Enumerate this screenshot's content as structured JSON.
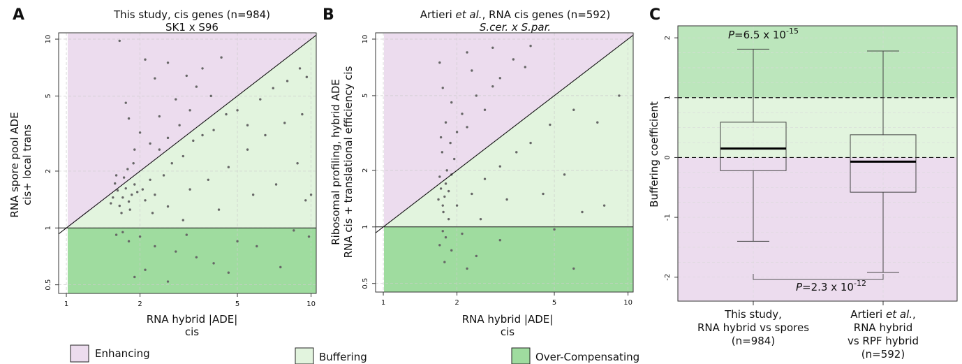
{
  "colors": {
    "enhancing": "#ecdcee",
    "buffering": "#e2f4de",
    "over_compensating": "#9fdc9f",
    "point": "#666666"
  },
  "panels": {
    "a": {
      "letter": "A",
      "title_line1": "This study, cis genes (n=984)",
      "title_line2": "SK1 x S96",
      "xlabel_line1": "RNA hybrid |ADE|",
      "xlabel_line2": "cis",
      "ylabel_line1": "RNA spore pool ADE",
      "ylabel_line2": "cis+ local trans"
    },
    "b": {
      "letter": "B",
      "title_prefix": "Artieri ",
      "title_etal": "et al.",
      "title_suffix": ", RNA cis genes (n=592)",
      "title_line2": "S.cer. x S.par.",
      "xlabel_line1": "RNA hybrid |ADE|",
      "xlabel_line2": "cis",
      "ylabel_line1": "Ribosomal profiling, hybrid ADE",
      "ylabel_line2": "RNA cis + translational efficiency cis"
    },
    "c": {
      "letter": "C",
      "ylabel": "Buffering coefficient",
      "p1_prefix": "P",
      "p1_value": "=6.5 x 10",
      "p1_exp": "-15",
      "p2_prefix": "P",
      "p2_value": "=2.3 x 10",
      "p2_exp": "-12",
      "cat1_line1": "This study,",
      "cat1_line2": "RNA hybrid vs spores",
      "cat1_line3": "(n=984)",
      "cat2_line1_prefix": "Artieri ",
      "cat2_line1_etal": "et al.",
      "cat2_line1_suffix": ",",
      "cat2_line2": "RNA hybrid",
      "cat2_line3": "vs RPF hybrid",
      "cat2_line4": "(n=592)"
    }
  },
  "legend": [
    {
      "label": "Enhancing"
    },
    {
      "label": "Buffering"
    },
    {
      "label": "Over-Compensating"
    }
  ],
  "chart_data": [
    {
      "type": "scatter",
      "panel": "A",
      "title": "This study, cis genes (n=984)",
      "subtitle": "SK1 x S96",
      "xlabel": "RNA hybrid |ADE| cis",
      "ylabel": "RNA spore pool ADE cis+ local trans",
      "x_scale": "log",
      "y_scale": "log",
      "xlim": [
        0.93,
        10.5
      ],
      "ylim": [
        0.45,
        10.8
      ],
      "x_ticks": [
        1,
        2,
        5,
        10
      ],
      "y_ticks": [
        0.5,
        1,
        2,
        5,
        10
      ],
      "grid": true,
      "reference_lines": [
        "y = x",
        "y = 1"
      ],
      "regions": [
        "Enhancing (y > x)",
        "Buffering (1 < y < x)",
        "Over-Compensating (y < 1)"
      ],
      "n_points": 984,
      "points": [
        [
          1.62,
          1.58
        ],
        [
          1.7,
          1.45
        ],
        [
          1.75,
          1.62
        ],
        [
          1.8,
          1.38
        ],
        [
          1.58,
          1.72
        ],
        [
          1.65,
          1.31
        ],
        [
          1.9,
          1.7
        ],
        [
          1.85,
          1.5
        ],
        [
          1.55,
          1.45
        ],
        [
          1.72,
          1.85
        ],
        [
          1.95,
          1.55
        ],
        [
          2.05,
          1.6
        ],
        [
          1.68,
          1.2
        ],
        [
          1.6,
          1.9
        ],
        [
          1.78,
          2.05
        ],
        [
          2.1,
          1.4
        ],
        [
          1.82,
          1.25
        ],
        [
          1.52,
          1.35
        ],
        [
          2.2,
          1.8
        ],
        [
          1.88,
          2.2
        ],
        [
          2.3,
          1.5
        ],
        [
          2.5,
          1.9
        ],
        [
          2.7,
          2.2
        ],
        [
          3.0,
          2.4
        ],
        [
          3.3,
          2.9
        ],
        [
          3.6,
          3.1
        ],
        [
          4.0,
          3.3
        ],
        [
          4.5,
          4.0
        ],
        [
          5.0,
          4.2
        ],
        [
          5.5,
          3.5
        ],
        [
          6.2,
          4.8
        ],
        [
          7.0,
          5.5
        ],
        [
          8.0,
          6.0
        ],
        [
          9.0,
          7.0
        ],
        [
          9.6,
          6.3
        ],
        [
          2.4,
          2.6
        ],
        [
          2.6,
          3.0
        ],
        [
          2.9,
          3.5
        ],
        [
          3.2,
          4.2
        ],
        [
          2.2,
          2.8
        ],
        [
          2.0,
          3.2
        ],
        [
          1.9,
          2.6
        ],
        [
          2.8,
          4.8
        ],
        [
          3.4,
          5.6
        ],
        [
          1.8,
          3.8
        ],
        [
          2.3,
          6.2
        ],
        [
          2.6,
          7.5
        ],
        [
          3.6,
          7.0
        ],
        [
          4.3,
          8.0
        ],
        [
          1.65,
          9.8
        ],
        [
          2.1,
          7.8
        ],
        [
          3.1,
          6.4
        ],
        [
          1.75,
          4.6
        ],
        [
          2.4,
          3.9
        ],
        [
          3.9,
          5.0
        ],
        [
          2.25,
          1.2
        ],
        [
          2.6,
          1.3
        ],
        [
          3.2,
          1.6
        ],
        [
          3.8,
          1.8
        ],
        [
          4.6,
          2.1
        ],
        [
          5.5,
          2.6
        ],
        [
          6.5,
          3.1
        ],
        [
          7.8,
          3.6
        ],
        [
          9.2,
          4.0
        ],
        [
          3.0,
          1.1
        ],
        [
          4.2,
          1.25
        ],
        [
          5.8,
          1.5
        ],
        [
          7.2,
          1.7
        ],
        [
          8.8,
          2.2
        ],
        [
          9.5,
          1.4
        ],
        [
          10.0,
          1.5
        ],
        [
          1.7,
          0.95
        ],
        [
          1.8,
          0.85
        ],
        [
          2.0,
          0.9
        ],
        [
          2.3,
          0.8
        ],
        [
          1.6,
          0.92
        ],
        [
          2.8,
          0.75
        ],
        [
          3.4,
          0.7
        ],
        [
          4.0,
          0.65
        ],
        [
          5.0,
          0.85
        ],
        [
          6.0,
          0.8
        ],
        [
          7.5,
          0.62
        ],
        [
          2.1,
          0.6
        ],
        [
          1.9,
          0.55
        ],
        [
          2.6,
          0.52
        ],
        [
          4.6,
          0.58
        ],
        [
          3.1,
          0.92
        ],
        [
          8.5,
          0.97
        ],
        [
          9.8,
          0.9
        ]
      ]
    },
    {
      "type": "scatter",
      "panel": "B",
      "title": "Artieri et al., RNA cis genes (n=592)",
      "subtitle": "S.cer. x S.par.",
      "xlabel": "RNA hybrid |ADE| cis",
      "ylabel": "Ribosomal profiling, hybrid ADE RNA cis + translational efficiency cis",
      "x_scale": "log",
      "y_scale": "log",
      "xlim": [
        0.93,
        10.5
      ],
      "ylim": [
        0.45,
        10.8
      ],
      "x_ticks": [
        1,
        2,
        5,
        10
      ],
      "y_ticks": [
        0.5,
        1,
        2,
        5,
        10
      ],
      "grid": true,
      "reference_lines": [
        "y = x",
        "y = 1"
      ],
      "regions": [
        "Enhancing (y > x)",
        "Buffering (1 < y < x)",
        "Over-Compensating (y < 1)"
      ],
      "n_points": 592,
      "points": [
        [
          1.72,
          1.6
        ],
        [
          1.78,
          1.45
        ],
        [
          1.8,
          1.7
        ],
        [
          1.75,
          1.3
        ],
        [
          1.7,
          1.85
        ],
        [
          1.85,
          1.55
        ],
        [
          1.82,
          2.0
        ],
        [
          1.68,
          1.4
        ],
        [
          1.9,
          1.9
        ],
        [
          1.76,
          1.2
        ],
        [
          1.95,
          2.3
        ],
        [
          1.74,
          2.5
        ],
        [
          1.88,
          2.8
        ],
        [
          2.0,
          3.2
        ],
        [
          1.8,
          3.6
        ],
        [
          2.1,
          4.0
        ],
        [
          2.2,
          3.4
        ],
        [
          1.9,
          4.6
        ],
        [
          2.4,
          5.0
        ],
        [
          2.6,
          4.2
        ],
        [
          2.8,
          5.6
        ],
        [
          3.0,
          6.2
        ],
        [
          2.3,
          6.8
        ],
        [
          1.7,
          7.5
        ],
        [
          3.4,
          7.8
        ],
        [
          3.8,
          7.1
        ],
        [
          2.2,
          8.5
        ],
        [
          2.8,
          9.0
        ],
        [
          4.0,
          9.2
        ],
        [
          1.75,
          5.5
        ],
        [
          1.72,
          3.0
        ],
        [
          1.85,
          1.1
        ],
        [
          2.0,
          1.3
        ],
        [
          2.3,
          1.5
        ],
        [
          2.6,
          1.8
        ],
        [
          3.0,
          2.1
        ],
        [
          3.5,
          2.5
        ],
        [
          4.0,
          2.8
        ],
        [
          4.8,
          3.5
        ],
        [
          6.0,
          4.2
        ],
        [
          7.5,
          3.6
        ],
        [
          9.2,
          5.0
        ],
        [
          5.5,
          1.9
        ],
        [
          4.5,
          1.5
        ],
        [
          3.2,
          1.4
        ],
        [
          6.5,
          1.2
        ],
        [
          8.0,
          1.3
        ],
        [
          2.5,
          1.1
        ],
        [
          1.75,
          0.95
        ],
        [
          1.8,
          0.88
        ],
        [
          1.7,
          0.8
        ],
        [
          1.9,
          0.75
        ],
        [
          2.1,
          0.92
        ],
        [
          2.4,
          0.7
        ],
        [
          3.0,
          0.85
        ],
        [
          1.78,
          0.65
        ],
        [
          2.2,
          0.6
        ],
        [
          5.0,
          0.97
        ],
        [
          6.0,
          0.6
        ]
      ]
    },
    {
      "type": "box",
      "panel": "C",
      "ylabel": "Buffering coefficient",
      "ylim": [
        -2.4,
        2.2
      ],
      "y_ticks": [
        -2,
        -1,
        0,
        1,
        2
      ],
      "reference_lines": [
        0,
        1
      ],
      "regions": [
        "Over-Compensating (y > 1)",
        "Buffering (0 < y < 1)",
        "Enhancing (y < 0)"
      ],
      "categories": [
        "This study, RNA hybrid vs spores (n=984)",
        "Artieri et al., RNA hybrid vs RPF hybrid (n=592)"
      ],
      "boxes": [
        {
          "whisker_low": -1.4,
          "q1": -0.22,
          "median": 0.15,
          "q3": 0.59,
          "whisker_high": 1.81
        },
        {
          "whisker_low": -1.92,
          "q1": -0.58,
          "median": -0.07,
          "q3": 0.38,
          "whisker_high": 1.78
        }
      ],
      "annotations": [
        "P=6.5 x 10^-15",
        "P=2.3 x 10^-12"
      ]
    }
  ]
}
